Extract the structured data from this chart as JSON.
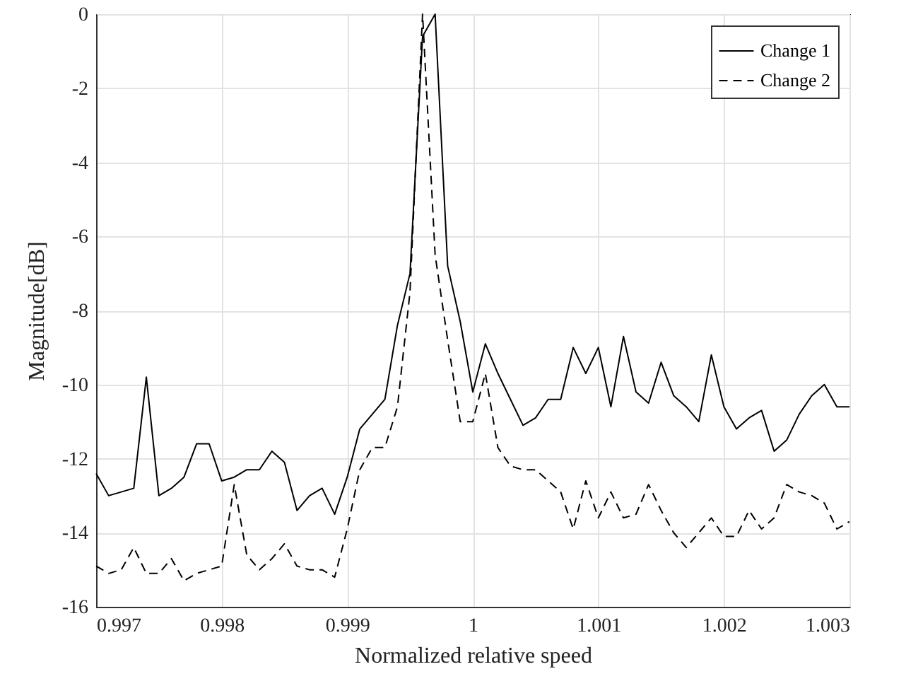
{
  "chart_data": {
    "type": "line",
    "xlabel": "Normalized relative speed",
    "ylabel": "Magnitude[dB]",
    "x": [
      0.997,
      0.9971,
      0.9972,
      0.9973,
      0.9974,
      0.9975,
      0.9976,
      0.9977,
      0.9978,
      0.9979,
      0.998,
      0.9981,
      0.9982,
      0.9983,
      0.9984,
      0.9985,
      0.9986,
      0.9987,
      0.9988,
      0.9989,
      0.999,
      0.9991,
      0.9992,
      0.9993,
      0.9994,
      0.9995,
      0.9996,
      0.9997,
      0.9998,
      0.9999,
      1,
      1.0001,
      1.0002,
      1.0003,
      1.0004,
      1.0005,
      1.0006,
      1.0007,
      1.0008,
      1.0009,
      1.001,
      1.0011,
      1.0012,
      1.0013,
      1.0014,
      1.0015,
      1.0016,
      1.0017,
      1.0018,
      1.0019,
      1.002,
      1.0021,
      1.0022,
      1.0023,
      1.0024,
      1.0025,
      1.0026,
      1.0027,
      1.0028,
      1.0029,
      1.003
    ],
    "series": [
      {
        "name": "Change 1",
        "color": "#000000",
        "line_style": "solid",
        "values": [
          -12.4,
          -13.0,
          -12.9,
          -12.8,
          -9.8,
          -13.0,
          -12.8,
          -12.5,
          -11.6,
          -11.6,
          -12.6,
          -12.5,
          -12.3,
          -12.3,
          -11.8,
          -12.1,
          -13.4,
          -13.0,
          -12.8,
          -13.5,
          -12.5,
          -11.2,
          -10.8,
          -10.4,
          -8.4,
          -7.0,
          -0.6,
          0,
          -6.8,
          -8.3,
          -10.2,
          -8.9,
          -9.7,
          -10.4,
          -11.1,
          -10.9,
          -10.4,
          -10.4,
          -9.0,
          -9.7,
          -9.0,
          -10.6,
          -8.7,
          -10.2,
          -10.5,
          -9.4,
          -10.3,
          -10.6,
          -11.0,
          -9.2,
          -10.6,
          -11.2,
          -10.9,
          -10.7,
          -11.8,
          -11.5,
          -10.8,
          -10.3,
          -10.0,
          -10.6,
          -10.6
        ]
      },
      {
        "name": "Change 2",
        "color": "#000000",
        "line_style": "dashed",
        "values": [
          -14.9,
          -15.1,
          -15.0,
          -14.4,
          -15.1,
          -15.1,
          -14.7,
          -15.3,
          -15.1,
          -15.0,
          -14.9,
          -12.7,
          -14.6,
          -15.0,
          -14.7,
          -14.3,
          -14.9,
          -15.0,
          -15.0,
          -15.2,
          -13.9,
          -12.3,
          -11.7,
          -11.7,
          -10.6,
          -7.5,
          0,
          -6.5,
          -8.8,
          -11.0,
          -11.0,
          -9.7,
          -11.7,
          -12.2,
          -12.3,
          -12.3,
          -12.6,
          -12.9,
          -13.9,
          -12.6,
          -13.6,
          -12.9,
          -13.6,
          -13.5,
          -12.7,
          -13.4,
          -14.0,
          -14.4,
          -14.0,
          -13.6,
          -14.1,
          -14.1,
          -13.4,
          -13.9,
          -13.6,
          -12.7,
          -12.9,
          -13.0,
          -13.2,
          -13.9,
          -13.7
        ]
      }
    ],
    "xlim": [
      0.997,
      1.003
    ],
    "xticks": [
      0.997,
      0.998,
      0.999,
      1,
      1.001,
      1.002,
      1.003
    ],
    "ylim": [
      -16,
      0
    ],
    "yticks": [
      -16,
      -14,
      -12,
      -10,
      -8,
      -6,
      -4,
      -2,
      0
    ],
    "grid": true,
    "legend": "top right",
    "marker": "none"
  }
}
